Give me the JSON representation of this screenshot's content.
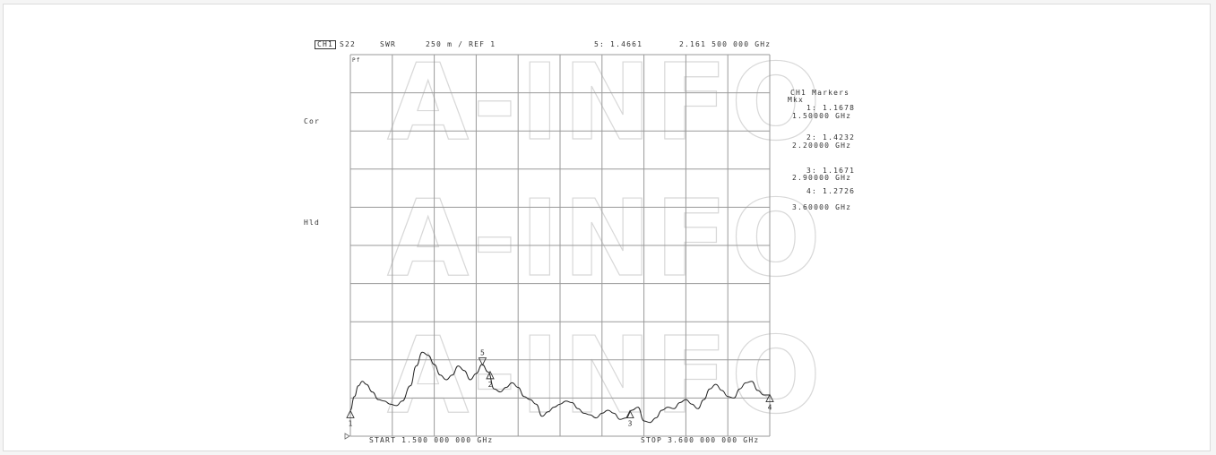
{
  "header": {
    "channel": "CH1",
    "param": "S22",
    "format": "SWR",
    "scale": "250 m / REF 1",
    "active_marker": "5: 1.4661",
    "active_freq": "2.161 500 000 GHz"
  },
  "left_annotations": {
    "cor": "Cor",
    "hld": "Hld"
  },
  "grid_annotation": "Pf",
  "footer": {
    "start": "START 1.500 000 000 GHz",
    "stop": "STOP 3.600 000 000 GHz"
  },
  "markers_panel": {
    "title": "CH1 Markers",
    "subtitle": "Mkx",
    "items": [
      {
        "value": "1: 1.1678",
        "freq": "1.50000 GHz"
      },
      {
        "value": "2: 1.4232",
        "freq": "2.20000 GHz"
      },
      {
        "value": "3: 1.1671",
        "freq": "2.90000 GHz"
      },
      {
        "value": "4: 1.2726",
        "freq": "3.60000 GHz"
      }
    ]
  },
  "watermark": "A-INFO",
  "colors": {
    "trace": "#222222",
    "grid": "#9a9a9a",
    "watermark": "#d8d8d8"
  },
  "chart_data": {
    "type": "line",
    "title": "",
    "xlabel": "",
    "ylabel": "",
    "xlim": [
      1.5,
      3.6
    ],
    "ylim": [
      1.0,
      3.5
    ],
    "y_reference": 1.0,
    "y_scale_per_div": 0.25,
    "x_divisions": 10,
    "y_divisions": 10,
    "grid": true,
    "x_unit": "GHz",
    "series": [
      {
        "x": [
          1.5,
          1.52,
          1.54,
          1.56,
          1.58,
          1.61,
          1.64,
          1.67,
          1.7,
          1.73,
          1.76,
          1.8,
          1.83,
          1.86,
          1.89,
          1.92,
          1.95,
          1.98,
          2.01,
          2.04,
          2.07,
          2.1,
          2.13,
          2.16,
          2.19,
          2.22,
          2.25,
          2.28,
          2.31,
          2.34,
          2.37,
          2.4,
          2.43,
          2.46,
          2.49,
          2.52,
          2.55,
          2.58,
          2.61,
          2.64,
          2.67,
          2.7,
          2.73,
          2.76,
          2.79,
          2.82,
          2.85,
          2.88,
          2.91,
          2.94,
          2.97,
          3.0,
          3.03,
          3.06,
          3.09,
          3.12,
          3.15,
          3.18,
          3.21,
          3.24,
          3.27,
          3.3,
          3.33,
          3.36,
          3.39,
          3.42,
          3.45,
          3.48,
          3.51,
          3.54,
          3.57,
          3.6
        ],
        "values": [
          1.17,
          1.26,
          1.33,
          1.36,
          1.34,
          1.29,
          1.24,
          1.23,
          1.21,
          1.2,
          1.23,
          1.33,
          1.46,
          1.55,
          1.53,
          1.47,
          1.4,
          1.37,
          1.4,
          1.46,
          1.43,
          1.37,
          1.41,
          1.47,
          1.42,
          1.31,
          1.29,
          1.32,
          1.35,
          1.32,
          1.26,
          1.24,
          1.21,
          1.13,
          1.16,
          1.19,
          1.21,
          1.23,
          1.22,
          1.18,
          1.15,
          1.14,
          1.12,
          1.15,
          1.17,
          1.15,
          1.11,
          1.12,
          1.17,
          1.19,
          1.1,
          1.09,
          1.12,
          1.17,
          1.19,
          1.18,
          1.22,
          1.24,
          1.21,
          1.18,
          1.24,
          1.31,
          1.34,
          1.3,
          1.26,
          1.25,
          1.31,
          1.35,
          1.36,
          1.3,
          1.27,
          1.27
        ]
      }
    ],
    "markers": [
      {
        "label": "1",
        "x": 1.5,
        "y": 1.1678,
        "dir": "up"
      },
      {
        "label": "2",
        "x": 2.2,
        "y": 1.4232,
        "dir": "up"
      },
      {
        "label": "3",
        "x": 2.9,
        "y": 1.1671,
        "dir": "up"
      },
      {
        "label": "4",
        "x": 3.6,
        "y": 1.2726,
        "dir": "up"
      },
      {
        "label": "5",
        "x": 2.1615,
        "y": 1.4661,
        "dir": "down"
      }
    ]
  }
}
